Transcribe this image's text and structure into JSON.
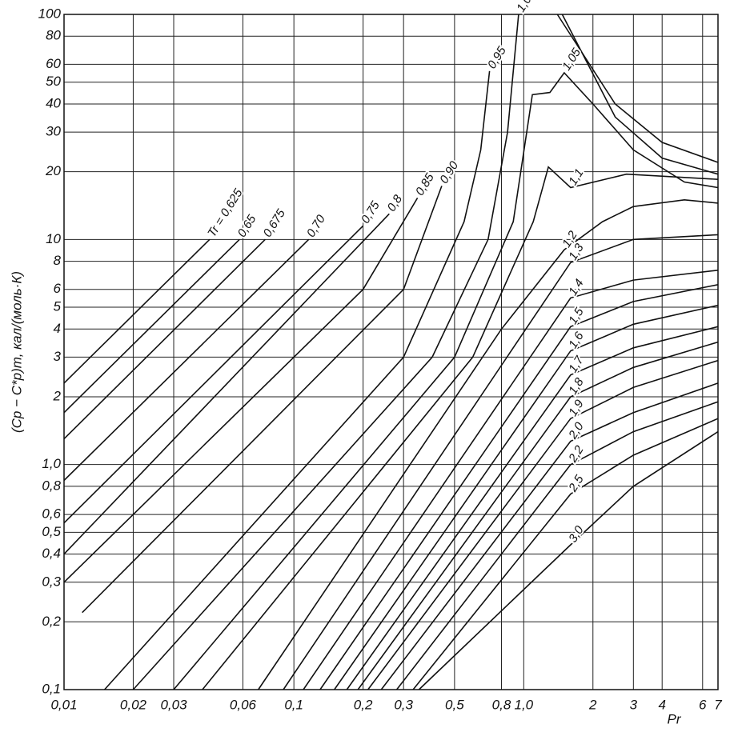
{
  "chart_data": {
    "type": "line",
    "x_label": "Pr",
    "y_label": "(Cp − C*p)т, кал/(моль·К)",
    "log_x": true,
    "log_y": true,
    "grid": true,
    "color": "#111111",
    "xlim": [
      0.01,
      7
    ],
    "ylim": [
      0.1,
      100
    ],
    "xticks": [
      {
        "value": 0.01,
        "label": "0,01"
      },
      {
        "value": 0.02,
        "label": "0,02"
      },
      {
        "value": 0.03,
        "label": "0,03"
      },
      {
        "value": 0.06,
        "label": "0,06"
      },
      {
        "value": 0.1,
        "label": "0,1"
      },
      {
        "value": 0.2,
        "label": "0,2"
      },
      {
        "value": 0.3,
        "label": "0,3"
      },
      {
        "value": 0.5,
        "label": "0,5"
      },
      {
        "value": 0.8,
        "label": "0,8"
      },
      {
        "value": 1.0,
        "label": "1,0"
      },
      2,
      3,
      4,
      6,
      7
    ],
    "yticks": [
      {
        "value": 0.1,
        "label": "0,1"
      },
      {
        "value": 0.2,
        "label": "0,2"
      },
      {
        "value": 0.3,
        "label": "0,3"
      },
      {
        "value": 0.4,
        "label": "0,4"
      },
      {
        "value": 0.5,
        "label": "0,5"
      },
      {
        "value": 0.6,
        "label": "0,6"
      },
      {
        "value": 0.8,
        "label": "0,8"
      },
      {
        "value": 1.0,
        "label": "1,0"
      },
      2,
      3,
      4,
      5,
      6,
      8,
      10,
      20,
      30,
      40,
      50,
      60,
      80,
      100
    ],
    "series": [
      {
        "name": "Tr = 0,625",
        "x": [
          0.01,
          0.043
        ],
        "values": [
          2.3,
          10
        ]
      },
      {
        "name": "0,65",
        "x": [
          0.01,
          0.058
        ],
        "values": [
          1.7,
          10
        ]
      },
      {
        "name": "0,675",
        "x": [
          0.01,
          0.075
        ],
        "values": [
          1.3,
          10
        ]
      },
      {
        "name": "0,70",
        "x": [
          0.01,
          0.116
        ],
        "values": [
          0.85,
          10
        ]
      },
      {
        "name": "0,75",
        "x": [
          0.01,
          0.2
        ],
        "values": [
          0.55,
          11.5
        ]
      },
      {
        "name": "0,8",
        "x": [
          0.01,
          0.26
        ],
        "values": [
          0.4,
          13
        ]
      },
      {
        "name": "0,85",
        "x": [
          0.01,
          0.2,
          0.345
        ],
        "values": [
          0.3,
          6,
          15.3
        ]
      },
      {
        "name": "0,90",
        "x": [
          0.012,
          0.3,
          0.44
        ],
        "values": [
          0.22,
          6,
          17.3
        ]
      },
      {
        "name": "0,95",
        "x": [
          0.015,
          0.3,
          0.55,
          0.65,
          0.71,
          null,
          1.4,
          2.5,
          4,
          7
        ],
        "values": [
          0.1,
          3,
          12,
          25,
          56,
          null,
          100,
          40,
          27,
          22
        ]
      },
      {
        "name": "1,0",
        "x": [
          0.02,
          0.4,
          0.7,
          0.85,
          0.95,
          null,
          1.47,
          2.5,
          4,
          7
        ],
        "values": [
          0.1,
          3,
          10,
          30,
          100,
          null,
          100,
          35,
          23,
          19.5
        ]
      },
      {
        "name": "1,05",
        "x": [
          0.03,
          0.5,
          0.9,
          1.09,
          1.3,
          1.5,
          2,
          3,
          5,
          7
        ],
        "values": [
          0.1,
          3,
          12,
          44,
          45,
          55,
          40,
          25,
          18,
          17
        ]
      },
      {
        "name": "1,1",
        "x": [
          0.04,
          0.6,
          1.1,
          1.28,
          1.6,
          2.8,
          7
        ],
        "values": [
          0.1,
          3,
          12,
          21,
          17,
          19.5,
          18.5
        ]
      },
      {
        "name": "1,2",
        "x": [
          0.07,
          0.8,
          1.5,
          2.2,
          3,
          5,
          7
        ],
        "values": [
          0.1,
          4,
          9,
          12,
          14,
          15,
          14.5
        ]
      },
      {
        "name": "1,3",
        "x": [
          0.09,
          1.6,
          3,
          7
        ],
        "values": [
          0.1,
          7.9,
          10,
          10.5
        ]
      },
      {
        "name": "1,4",
        "x": [
          0.11,
          1.6,
          3,
          7
        ],
        "values": [
          0.1,
          5.5,
          6.6,
          7.3
        ]
      },
      {
        "name": "1,5",
        "x": [
          0.13,
          1.6,
          3,
          7
        ],
        "values": [
          0.1,
          4.1,
          5.3,
          6.3
        ]
      },
      {
        "name": "1,6",
        "x": [
          0.15,
          1.6,
          3,
          7
        ],
        "values": [
          0.1,
          3.2,
          4.2,
          5.1
        ]
      },
      {
        "name": "1,7",
        "x": [
          0.17,
          1.6,
          3,
          7
        ],
        "values": [
          0.1,
          2.5,
          3.3,
          4.1
        ]
      },
      {
        "name": "1,8",
        "x": [
          0.19,
          1.6,
          3,
          7
        ],
        "values": [
          0.1,
          2,
          2.7,
          3.5
        ]
      },
      {
        "name": "1,9",
        "x": [
          0.21,
          1.6,
          3,
          7
        ],
        "values": [
          0.1,
          1.6,
          2.2,
          2.9
        ]
      },
      {
        "name": "2,0",
        "x": [
          0.24,
          1.6,
          3,
          7
        ],
        "values": [
          0.1,
          1.27,
          1.7,
          2.3
        ]
      },
      {
        "name": "2,2",
        "x": [
          0.28,
          1.6,
          3,
          7
        ],
        "values": [
          0.1,
          1.0,
          1.4,
          1.9
        ]
      },
      {
        "name": "2,5",
        "x": [
          0.33,
          1.6,
          3,
          7
        ],
        "values": [
          0.1,
          0.74,
          1.1,
          1.6
        ]
      },
      {
        "name": "3,0",
        "x": [
          0.35,
          1.6,
          3,
          7
        ],
        "values": [
          0.1,
          0.44,
          0.8,
          1.4
        ]
      }
    ]
  }
}
